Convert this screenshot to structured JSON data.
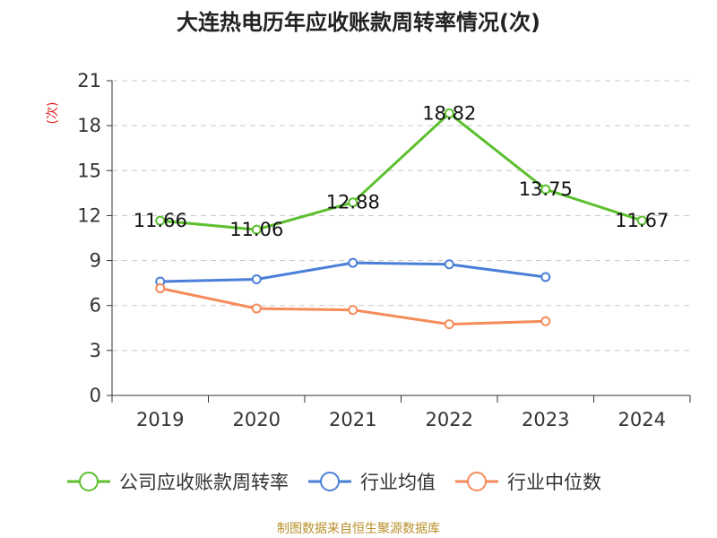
{
  "chart_data": {
    "type": "line",
    "title": "大连热电历年应收账款周转率情况(次)",
    "ylabel": "(次)",
    "xlabel": "",
    "categories": [
      "2019",
      "2020",
      "2021",
      "2022",
      "2023",
      "2024"
    ],
    "ylim": [
      0,
      21
    ],
    "yticks": [
      0,
      3,
      6,
      9,
      12,
      15,
      18,
      21
    ],
    "grid": true,
    "legend_position": "bottom",
    "series": [
      {
        "name": "公司应收账款周转率",
        "color": "#5cc02e",
        "values": [
          11.66,
          11.06,
          12.88,
          18.82,
          13.75,
          11.67
        ],
        "labels": [
          "11.66",
          "11.06",
          "12.88",
          "18.82",
          "13.75",
          "11.67"
        ]
      },
      {
        "name": "行业均值",
        "color": "#4a7fd8",
        "values": [
          7.6,
          7.75,
          8.85,
          8.75,
          7.9,
          null
        ]
      },
      {
        "name": "行业中位数",
        "color": "#f58b5a",
        "values": [
          7.15,
          5.8,
          5.7,
          4.75,
          4.95,
          null
        ]
      }
    ]
  },
  "source": "制图数据来自恒生聚源数据库"
}
